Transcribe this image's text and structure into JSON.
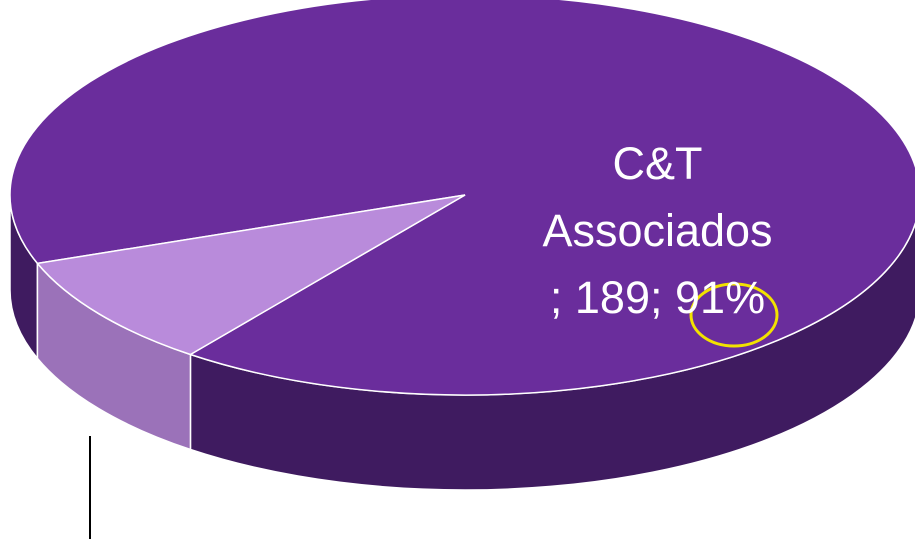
{
  "chart_data": {
    "type": "pie3d",
    "categories": [
      "C&T Associados",
      null
    ],
    "values": [
      189,
      19
    ],
    "value_labels": [
      "189",
      null
    ],
    "percent_labels": [
      "91%",
      null
    ],
    "label_separator": "; ",
    "colors": [
      "#6a2d9c",
      "#b98bdb"
    ],
    "side_colors": [
      "#3f1b60",
      "#9b72b9"
    ]
  }
}
